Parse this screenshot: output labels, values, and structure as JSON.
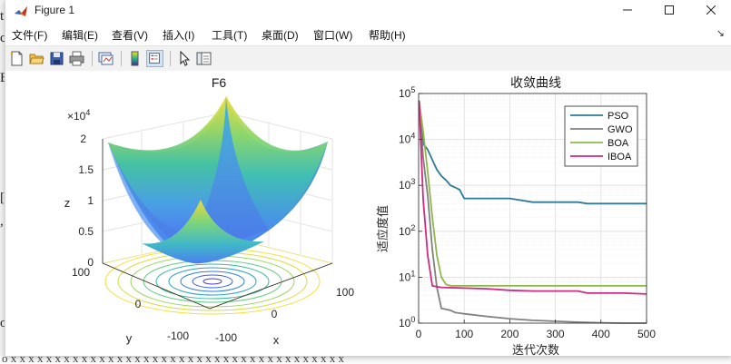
{
  "window": {
    "title": "Figure 1"
  },
  "menu": [
    {
      "label": "文件(F)"
    },
    {
      "label": "编辑(E)"
    },
    {
      "label": "查看(V)"
    },
    {
      "label": "插入(I)"
    },
    {
      "label": "工具(T)"
    },
    {
      "label": "桌面(D)"
    },
    {
      "label": "窗口(W)"
    },
    {
      "label": "帮助(H)"
    }
  ],
  "toolbar_icons": [
    "new-file-icon",
    "open-folder-icon",
    "save-icon",
    "print-icon",
    "link-plot-icon",
    "colorbar-icon",
    "legend-icon",
    "pointer-icon",
    "property-editor-icon"
  ],
  "surface_plot": {
    "title": "F6",
    "z_exponent_label": "×10",
    "z_exponent": "4",
    "zlabel": "z",
    "xlabel": "x",
    "ylabel": "y",
    "z_ticks": [
      "2",
      "1.5",
      "1",
      "0.5",
      "0"
    ],
    "x_ticks": [
      "-100",
      "0",
      "100"
    ],
    "y_ticks": [
      "100",
      "0",
      "-100"
    ]
  },
  "chart_data": {
    "type": "line",
    "title": "收敛曲线",
    "xlabel": "迭代次数",
    "ylabel": "适应度值",
    "yscale": "log",
    "xlim": [
      0,
      500
    ],
    "ylim": [
      1,
      100000
    ],
    "x_ticks": [
      "0",
      "100",
      "200",
      "300",
      "400",
      "500"
    ],
    "y_ticks": [
      {
        "base": "10",
        "exp": "0"
      },
      {
        "base": "10",
        "exp": "1"
      },
      {
        "base": "10",
        "exp": "2"
      },
      {
        "base": "10",
        "exp": "3"
      },
      {
        "base": "10",
        "exp": "4"
      },
      {
        "base": "10",
        "exp": "5"
      }
    ],
    "grid": true,
    "legend_position": "top-right",
    "series": [
      {
        "name": "PSO",
        "color": "#2e7b96",
        "x": [
          1,
          10,
          20,
          30,
          40,
          50,
          60,
          70,
          80,
          90,
          100,
          150,
          200,
          250,
          300,
          350,
          370,
          400,
          450,
          500
        ],
        "y": [
          70000,
          8000,
          6000,
          3600,
          2200,
          1600,
          1300,
          1000,
          900,
          800,
          520,
          520,
          520,
          430,
          430,
          430,
          400,
          400,
          400,
          400
        ]
      },
      {
        "name": "GWO",
        "color": "#808080",
        "x": [
          1,
          10,
          20,
          30,
          40,
          50,
          60,
          70,
          80,
          100,
          150,
          200,
          250,
          300,
          350,
          400,
          450,
          500
        ],
        "y": [
          70000,
          4000,
          600,
          40,
          6,
          2.1,
          2.0,
          1.9,
          1.7,
          1.6,
          1.4,
          1.25,
          1.15,
          1.1,
          1.05,
          1.02,
          1.0,
          1.0
        ]
      },
      {
        "name": "BOA",
        "color": "#8fb84a",
        "x": [
          1,
          10,
          20,
          30,
          40,
          50,
          60,
          70,
          80,
          100,
          150,
          200,
          250,
          300,
          350,
          400,
          450,
          500
        ],
        "y": [
          70000,
          15000,
          2000,
          200,
          30,
          10,
          7,
          6.5,
          6.5,
          6.5,
          6.5,
          6.5,
          6.5,
          6.5,
          6.5,
          6.5,
          6.5,
          6.5
        ]
      },
      {
        "name": "IBOA",
        "color": "#d02a80",
        "x": [
          1,
          10,
          20,
          30,
          40,
          50,
          100,
          150,
          200,
          250,
          300,
          350,
          370,
          400,
          450,
          500
        ],
        "y": [
          70000,
          500,
          30,
          6.5,
          6.2,
          6.0,
          5.8,
          5.6,
          5.2,
          5.0,
          5.0,
          5.0,
          4.5,
          4.5,
          4.5,
          4.3
        ]
      }
    ]
  }
}
